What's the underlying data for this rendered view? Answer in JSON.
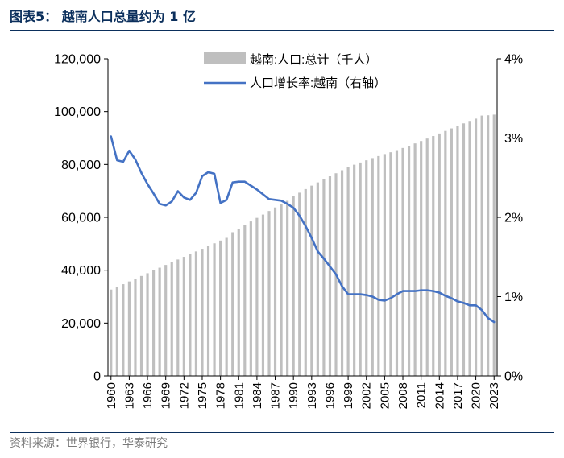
{
  "figure_title": "图表5：  越南人口总量约为 1 亿",
  "source": "资料来源：世界银行，华泰研究",
  "colors": {
    "bars": "#bfbfbf",
    "line": "#4472c4",
    "navy": "#0b2f5c"
  },
  "chart_data": {
    "type": "bar",
    "title": "越南人口总量约为 1 亿",
    "x": [
      1960,
      1961,
      1962,
      1963,
      1964,
      1965,
      1966,
      1967,
      1968,
      1969,
      1970,
      1971,
      1972,
      1973,
      1974,
      1975,
      1976,
      1977,
      1978,
      1979,
      1980,
      1981,
      1982,
      1983,
      1984,
      1985,
      1986,
      1987,
      1988,
      1989,
      1990,
      1991,
      1992,
      1993,
      1994,
      1995,
      1996,
      1997,
      1998,
      1999,
      2000,
      2001,
      2002,
      2003,
      2004,
      2005,
      2006,
      2007,
      2008,
      2009,
      2010,
      2011,
      2012,
      2013,
      2014,
      2015,
      2016,
      2017,
      2018,
      2019,
      2020,
      2021,
      2022,
      2023
    ],
    "x_tick_labels": [
      "1960",
      "1963",
      "1966",
      "1969",
      "1972",
      "1975",
      "1978",
      "1981",
      "1984",
      "1987",
      "1990",
      "1993",
      "1996",
      "1999",
      "2002",
      "2005",
      "2008",
      "2011",
      "2014",
      "2017",
      "2020",
      "2023"
    ],
    "series": [
      {
        "name": "越南:人口:总计（千人）",
        "type": "bar",
        "axis": "left",
        "values": [
          32670,
          33670,
          34700,
          35740,
          36780,
          37820,
          38860,
          39900,
          40950,
          41990,
          43020,
          44040,
          45060,
          46080,
          47100,
          48100,
          49140,
          50180,
          51220,
          52240,
          54370,
          55730,
          57090,
          58450,
          59800,
          61040,
          62390,
          63740,
          65090,
          66250,
          67990,
          69310,
          70690,
          71990,
          73210,
          74370,
          75530,
          76680,
          77820,
          78890,
          79910,
          80740,
          81580,
          82410,
          83180,
          83940,
          84620,
          85420,
          86240,
          87090,
          87970,
          88870,
          89800,
          90750,
          91710,
          92680,
          93640,
          94600,
          95550,
          96480,
          97340,
          98500,
          98620,
          98860
        ]
      },
      {
        "name": "人口增长率:越南（右轴）",
        "type": "line",
        "axis": "right",
        "values": [
          3.02,
          2.72,
          2.7,
          2.84,
          2.73,
          2.56,
          2.42,
          2.3,
          2.17,
          2.15,
          2.2,
          2.33,
          2.25,
          2.22,
          2.31,
          2.52,
          2.57,
          2.55,
          2.18,
          2.22,
          2.44,
          2.45,
          2.45,
          2.4,
          2.35,
          2.29,
          2.23,
          2.22,
          2.21,
          2.17,
          2.12,
          2.02,
          1.89,
          1.74,
          1.57,
          1.48,
          1.38,
          1.28,
          1.13,
          1.03,
          1.03,
          1.03,
          1.02,
          1.0,
          0.96,
          0.95,
          0.98,
          1.03,
          1.07,
          1.07,
          1.07,
          1.08,
          1.08,
          1.07,
          1.05,
          1.01,
          0.98,
          0.94,
          0.92,
          0.89,
          0.89,
          0.83,
          0.73,
          0.68
        ]
      }
    ],
    "y_left": {
      "min": 0,
      "max": 120000,
      "ticks": [
        "0",
        "20,000",
        "40,000",
        "60,000",
        "80,000",
        "100,000",
        "120,000"
      ]
    },
    "y_right": {
      "min": 0,
      "max": 4,
      "ticks": [
        "0%",
        "1%",
        "2%",
        "3%",
        "4%"
      ]
    },
    "legend": [
      "越南:人口:总计（千人）",
      "人口增长率:越南（右轴）"
    ],
    "legend_position": "top-right",
    "grid": false
  }
}
